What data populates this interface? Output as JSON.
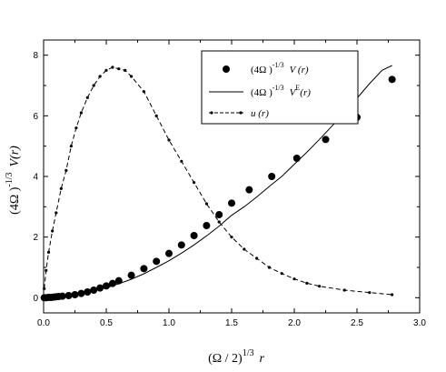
{
  "chart_data": {
    "type": "line",
    "xlabel_parts": {
      "base": "(Ω / 2)",
      "exp": "1/3",
      "var": "r"
    },
    "ylabel_parts": {
      "base": "(4Ω )",
      "exp": "-1/3",
      "var": "V(r)"
    },
    "xlim": [
      0.0,
      3.0
    ],
    "ylim": [
      -0.5,
      8.5
    ],
    "x_ticks": [
      0.0,
      0.5,
      1.0,
      1.5,
      2.0,
      2.5,
      3.0
    ],
    "x_tick_labels": [
      "0.0",
      "0.5",
      "1.0",
      "1.5",
      "2.0",
      "2.5",
      "3.0"
    ],
    "y_ticks": [
      0,
      2,
      4,
      6,
      8
    ],
    "y_tick_labels": [
      "0",
      "2",
      "4",
      "6",
      "8"
    ],
    "legend_position": "top-right",
    "legend": [
      {
        "style": "large-dots",
        "prefix": "(4Ω )",
        "exp": "-1/3",
        "tail": "V (r)"
      },
      {
        "style": "solid-line",
        "prefix": "(4Ω )",
        "exp": "-1/3",
        "tail": "V",
        "sup": "E",
        "tail2": "(r)"
      },
      {
        "style": "dash-dot",
        "prefix": "",
        "exp": "",
        "tail": "u (r)"
      }
    ],
    "series": [
      {
        "style": "large-dots",
        "x": [
          0.005,
          0.02,
          0.04,
          0.06,
          0.08,
          0.1,
          0.12,
          0.15,
          0.2,
          0.25,
          0.3,
          0.35,
          0.4,
          0.45,
          0.5,
          0.55,
          0.6,
          0.7,
          0.8,
          0.9,
          1.0,
          1.1,
          1.2,
          1.3,
          1.4,
          1.5,
          1.64,
          1.82,
          2.02,
          2.25,
          2.5,
          2.78
        ],
        "y": [
          0.0,
          0.0,
          0.01,
          0.01,
          0.02,
          0.03,
          0.04,
          0.05,
          0.07,
          0.1,
          0.14,
          0.19,
          0.25,
          0.32,
          0.39,
          0.47,
          0.56,
          0.74,
          0.96,
          1.2,
          1.46,
          1.74,
          2.05,
          2.38,
          2.74,
          3.12,
          3.56,
          4.0,
          4.6,
          5.22,
          5.95,
          7.2
        ]
      },
      {
        "style": "solid-line",
        "x": [
          0.0,
          0.1,
          0.2,
          0.3,
          0.4,
          0.5,
          0.6,
          0.7,
          0.8,
          0.9,
          1.0,
          1.1,
          1.2,
          1.3,
          1.4,
          1.5,
          1.6,
          1.7,
          1.8,
          1.9,
          2.0,
          2.1,
          2.2,
          2.3,
          2.4,
          2.5,
          2.6,
          2.7,
          2.78
        ],
        "y": [
          0.0,
          0.02,
          0.06,
          0.13,
          0.22,
          0.33,
          0.46,
          0.61,
          0.79,
          1.0,
          1.22,
          1.47,
          1.74,
          2.04,
          2.36,
          2.72,
          3.0,
          3.32,
          3.67,
          4.0,
          4.4,
          4.8,
          5.22,
          5.66,
          6.1,
          6.58,
          7.06,
          7.5,
          7.66
        ]
      },
      {
        "style": "dash-dot",
        "x": [
          0.005,
          0.02,
          0.04,
          0.07,
          0.1,
          0.14,
          0.18,
          0.22,
          0.26,
          0.3,
          0.35,
          0.4,
          0.45,
          0.5,
          0.55,
          0.6,
          0.65,
          0.7,
          0.8,
          0.9,
          1.0,
          1.1,
          1.2,
          1.3,
          1.4,
          1.5,
          1.6,
          1.7,
          1.8,
          1.9,
          2.0,
          2.1,
          2.2,
          2.4,
          2.6,
          2.78
        ],
        "y": [
          0.3,
          0.9,
          1.5,
          2.2,
          2.8,
          3.6,
          4.2,
          5.0,
          5.6,
          6.1,
          6.6,
          7.0,
          7.3,
          7.5,
          7.6,
          7.55,
          7.5,
          7.3,
          6.8,
          6.0,
          5.2,
          4.5,
          3.8,
          3.1,
          2.5,
          2.0,
          1.6,
          1.3,
          1.0,
          0.8,
          0.62,
          0.48,
          0.38,
          0.25,
          0.17,
          0.1
        ]
      }
    ]
  }
}
